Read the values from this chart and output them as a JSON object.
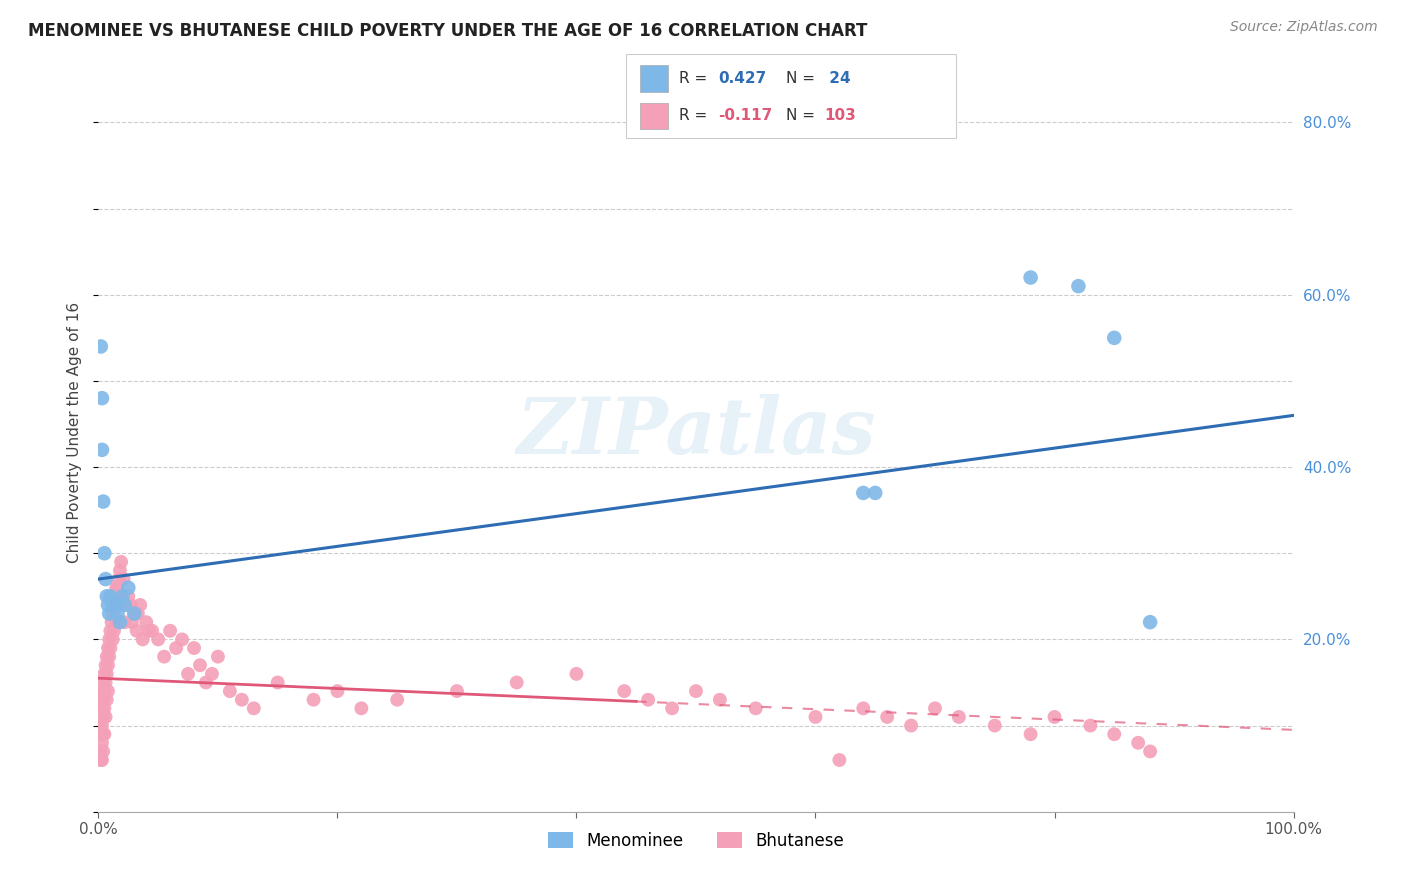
{
  "title": "MENOMINEE VS BHUTANESE CHILD POVERTY UNDER THE AGE OF 16 CORRELATION CHART",
  "source": "Source: ZipAtlas.com",
  "ylabel": "Child Poverty Under the Age of 16",
  "xlim": [
    0.0,
    1.0
  ],
  "ylim": [
    0.0,
    0.88
  ],
  "menominee_color": "#7EB8E8",
  "bhutanese_color": "#F4A0B8",
  "trendline_menominee_color": "#2E6DB4",
  "trendline_bhutanese_color": "#E05878",
  "R_menominee": "0.427",
  "N_menominee": "24",
  "R_bhutanese": "-0.117",
  "N_bhutanese": "103",
  "watermark": "ZIPatlas",
  "background_color": "#FFFFFF",
  "menominee_x": [
    0.002,
    0.003,
    0.003,
    0.004,
    0.005,
    0.006,
    0.007,
    0.008,
    0.009,
    0.01,
    0.012,
    0.015,
    0.016,
    0.018,
    0.02,
    0.022,
    0.025,
    0.03,
    0.78,
    0.82,
    0.85,
    0.88,
    0.65,
    0.64
  ],
  "menominee_y": [
    0.54,
    0.48,
    0.42,
    0.36,
    0.3,
    0.27,
    0.25,
    0.24,
    0.23,
    0.25,
    0.24,
    0.24,
    0.23,
    0.22,
    0.25,
    0.24,
    0.26,
    0.23,
    0.62,
    0.61,
    0.55,
    0.22,
    0.37,
    0.37
  ],
  "bhutanese_x": [
    0.001,
    0.001,
    0.001,
    0.002,
    0.002,
    0.002,
    0.003,
    0.003,
    0.003,
    0.003,
    0.003,
    0.004,
    0.004,
    0.004,
    0.004,
    0.004,
    0.005,
    0.005,
    0.005,
    0.005,
    0.006,
    0.006,
    0.006,
    0.007,
    0.007,
    0.007,
    0.008,
    0.008,
    0.008,
    0.009,
    0.009,
    0.01,
    0.01,
    0.011,
    0.012,
    0.012,
    0.013,
    0.013,
    0.014,
    0.015,
    0.015,
    0.016,
    0.017,
    0.018,
    0.018,
    0.019,
    0.02,
    0.021,
    0.022,
    0.023,
    0.025,
    0.027,
    0.028,
    0.03,
    0.032,
    0.033,
    0.035,
    0.037,
    0.04,
    0.042,
    0.045,
    0.05,
    0.055,
    0.06,
    0.065,
    0.07,
    0.075,
    0.08,
    0.085,
    0.09,
    0.095,
    0.1,
    0.11,
    0.12,
    0.13,
    0.15,
    0.18,
    0.2,
    0.22,
    0.25,
    0.3,
    0.35,
    0.4,
    0.44,
    0.46,
    0.48,
    0.5,
    0.52,
    0.55,
    0.6,
    0.64,
    0.66,
    0.68,
    0.7,
    0.72,
    0.75,
    0.78,
    0.8,
    0.83,
    0.85,
    0.87,
    0.88,
    0.62
  ],
  "bhutanese_y": [
    0.13,
    0.1,
    0.07,
    0.12,
    0.09,
    0.06,
    0.14,
    0.12,
    0.1,
    0.08,
    0.06,
    0.15,
    0.13,
    0.11,
    0.09,
    0.07,
    0.16,
    0.14,
    0.12,
    0.09,
    0.17,
    0.15,
    0.11,
    0.18,
    0.16,
    0.13,
    0.19,
    0.17,
    0.14,
    0.2,
    0.18,
    0.21,
    0.19,
    0.22,
    0.23,
    0.2,
    0.24,
    0.21,
    0.25,
    0.26,
    0.22,
    0.26,
    0.27,
    0.28,
    0.24,
    0.29,
    0.25,
    0.27,
    0.22,
    0.24,
    0.25,
    0.24,
    0.22,
    0.23,
    0.21,
    0.23,
    0.24,
    0.2,
    0.22,
    0.21,
    0.21,
    0.2,
    0.18,
    0.21,
    0.19,
    0.2,
    0.16,
    0.19,
    0.17,
    0.15,
    0.16,
    0.18,
    0.14,
    0.13,
    0.12,
    0.15,
    0.13,
    0.14,
    0.12,
    0.13,
    0.14,
    0.15,
    0.16,
    0.14,
    0.13,
    0.12,
    0.14,
    0.13,
    0.12,
    0.11,
    0.12,
    0.11,
    0.1,
    0.12,
    0.11,
    0.1,
    0.09,
    0.11,
    0.1,
    0.09,
    0.08,
    0.07,
    0.06
  ]
}
